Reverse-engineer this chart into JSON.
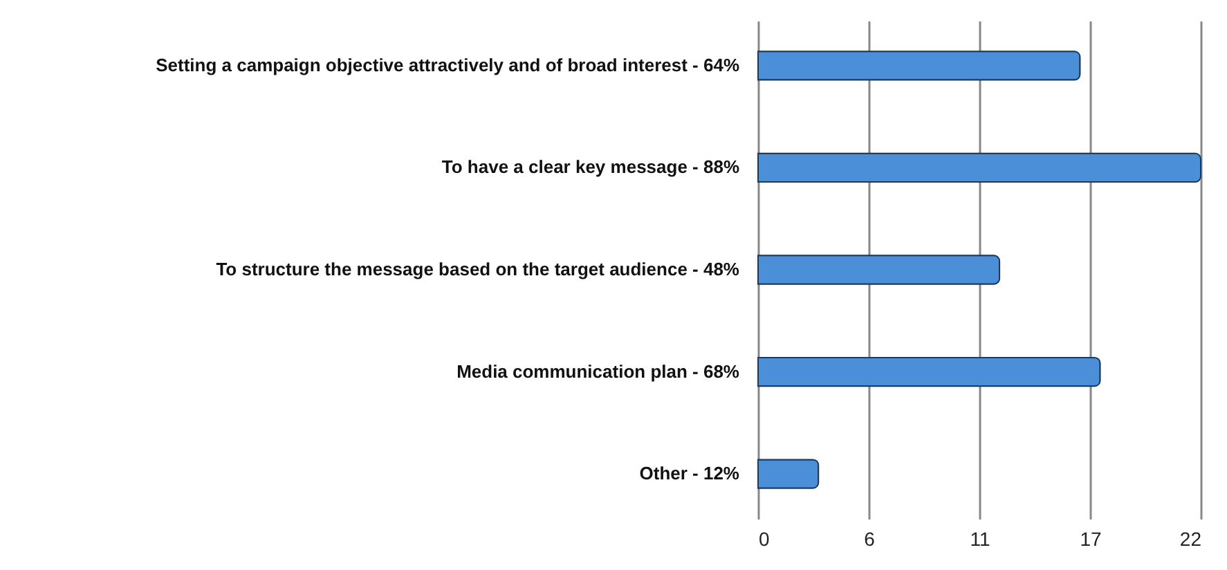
{
  "chart_data": {
    "type": "bar",
    "orientation": "horizontal",
    "categories": [
      "Setting a campaign objective attractively and of broad interest - 64%",
      "To have a clear key message - 88%",
      "To structure the message based on the target audience - 48%",
      "Media communication plan - 68%",
      "Other - 12%"
    ],
    "values": [
      16,
      22,
      12,
      17,
      3
    ],
    "color": "#4a8fd8",
    "xlim": [
      0,
      22
    ],
    "xticks": [
      0,
      {
        "value": 5.5,
        "label": "6"
      },
      11,
      {
        "value": 16.5,
        "label": "17"
      },
      22
    ],
    "grid": "x"
  }
}
